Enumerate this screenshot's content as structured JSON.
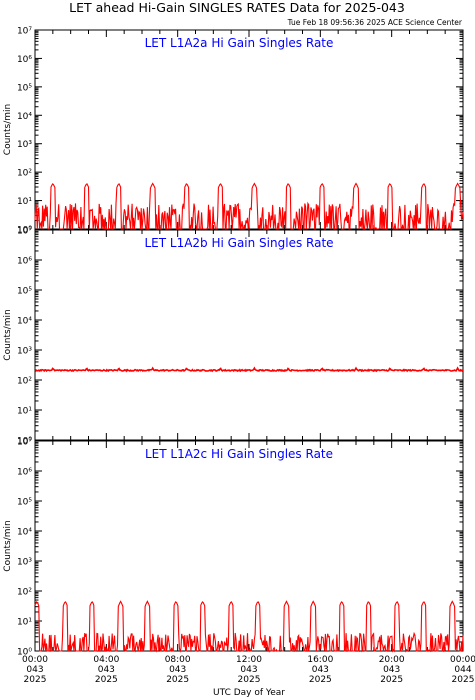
{
  "header": {
    "title": "LET ahead Hi-Gain SINGLES RATES Data for 2025-043",
    "timestamp": "Tue Feb 18 09:56:36 2025 ACE Science Center"
  },
  "colors": {
    "series": "#ff0000",
    "panel_title": "#0000ff",
    "axis": "#000000",
    "background": "#ffffff"
  },
  "chart_data": [
    {
      "type": "line",
      "title": "LET L1A2a Hi Gain Singles Rate",
      "ylabel": "Counts/min",
      "yscale": "log",
      "ylim": [
        1,
        10000000
      ],
      "ytick_labels": [
        "10⁰",
        "10¹",
        "10²",
        "10³",
        "10⁴",
        "10⁵",
        "10⁶",
        "10⁷"
      ],
      "xlim": [
        0,
        24
      ],
      "series": [
        {
          "profile": "noisy baseline 1–8 counts/min with periodic spikes",
          "baseline_range": [
            1,
            8
          ],
          "spike_hours": [
            1.0,
            2.9,
            4.7,
            6.6,
            8.5,
            10.4,
            12.3,
            14.2,
            16.1,
            18.0,
            19.9,
            21.8,
            23.7
          ],
          "spike_value": 40
        }
      ]
    },
    {
      "type": "line",
      "title": "LET L1A2b Hi Gain Singles Rate",
      "ylabel": "Counts/min",
      "yscale": "log",
      "ylim": [
        1,
        10000000
      ],
      "ytick_labels": [
        "10⁰",
        "10¹",
        "10²",
        "10³",
        "10⁴",
        "10⁵",
        "10⁶",
        "10⁷"
      ],
      "xlim": [
        0,
        24
      ],
      "series": [
        {
          "profile": "steady level with small bumps",
          "level": 210,
          "spike_hours": [
            1.0,
            2.9,
            4.7,
            6.6,
            8.5,
            10.4,
            12.3,
            14.2,
            16.1,
            18.0,
            19.9,
            21.8,
            23.7
          ],
          "spike_value": 250
        }
      ]
    },
    {
      "type": "line",
      "title": "LET L1A2c Hi Gain Singles Rate",
      "ylabel": "Counts/min",
      "yscale": "log",
      "ylim": [
        1,
        10000000
      ],
      "ytick_labels": [
        "10⁰",
        "10¹",
        "10²",
        "10³",
        "10⁴",
        "10⁵",
        "10⁶",
        "10⁷"
      ],
      "xlim": [
        0,
        24
      ],
      "xlabel": "UTC Day of Year",
      "x_ticks": [
        {
          "hour": 0,
          "time": "00:00",
          "doy": "043",
          "year": "2025"
        },
        {
          "hour": 4,
          "time": "04:00",
          "doy": "043",
          "year": "2025"
        },
        {
          "hour": 8,
          "time": "08:00",
          "doy": "043",
          "year": "2025"
        },
        {
          "hour": 12,
          "time": "12:00",
          "doy": "043",
          "year": "2025"
        },
        {
          "hour": 16,
          "time": "16:00",
          "doy": "043",
          "year": "2025"
        },
        {
          "hour": 20,
          "time": "20:00",
          "doy": "043",
          "year": "2025"
        },
        {
          "hour": 24,
          "time": "00:00",
          "doy": "044",
          "year": "2025"
        }
      ],
      "series": [
        {
          "profile": "noisy baseline 1–4 counts/min with periodic spikes",
          "baseline_range": [
            1,
            4
          ],
          "spike_hours": [
            0.1,
            1.7,
            3.2,
            4.8,
            6.3,
            7.9,
            9.4,
            11.0,
            12.5,
            14.1,
            15.6,
            17.2,
            18.7,
            20.3,
            21.8,
            23.4
          ],
          "spike_value": 45
        }
      ]
    }
  ]
}
